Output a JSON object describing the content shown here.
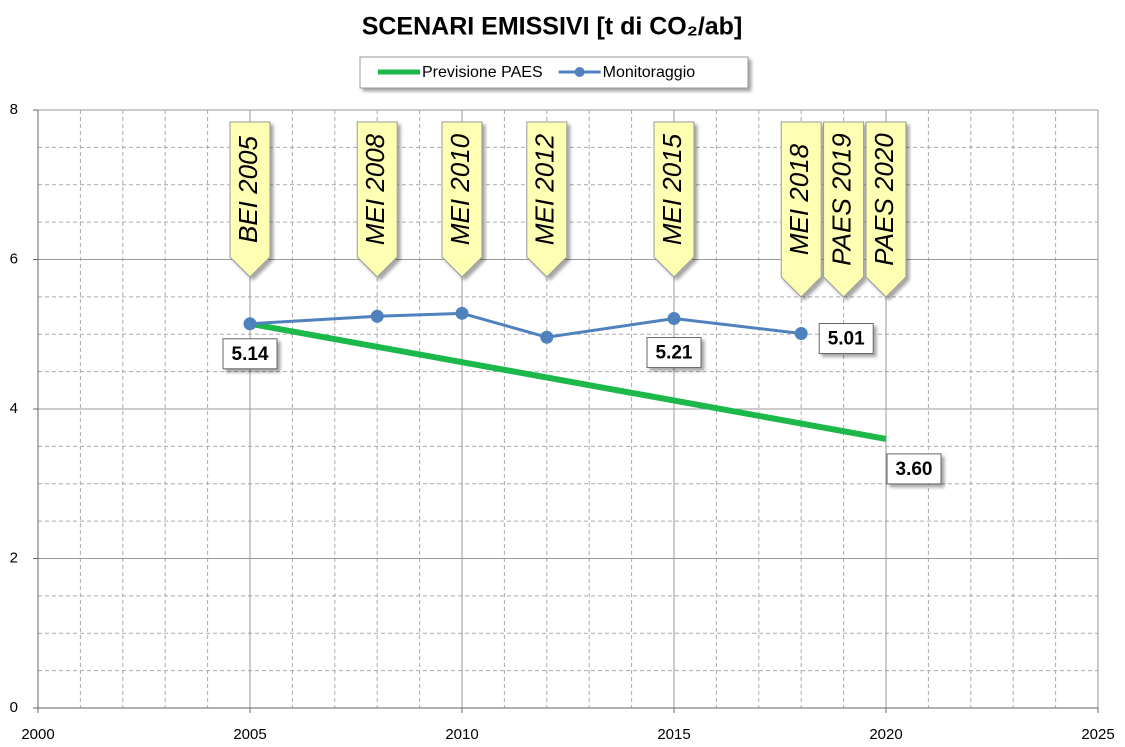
{
  "chart_data": {
    "type": "line",
    "title": "SCENARI EMISSIVI [t di CO₂/ab]",
    "xlim": [
      2000,
      2025
    ],
    "xticks": [
      2000,
      2005,
      2010,
      2015,
      2020,
      2025
    ],
    "ylim": [
      0,
      8
    ],
    "yticks": [
      0,
      2,
      4,
      6,
      8
    ],
    "grid": true,
    "x_minor_step": 1,
    "y_minor_step": 0.5,
    "legend": "top",
    "series": [
      {
        "name": "Previsione PAES",
        "color": "#1db84a",
        "x": [
          2005,
          2020
        ],
        "values": [
          5.14,
          3.6
        ],
        "value_labels": [
          null,
          "3.60"
        ],
        "label_color": "#ff0000",
        "markers": false
      },
      {
        "name": "Monitoraggio",
        "color": "#4f81bd",
        "x": [
          2005,
          2008,
          2010,
          2012,
          2015,
          2018
        ],
        "values": [
          5.14,
          5.24,
          5.28,
          4.96,
          5.21,
          5.01
        ],
        "value_labels": [
          "5.14",
          null,
          null,
          null,
          "5.21",
          "5.01"
        ],
        "label_color": "#000000",
        "markers": true
      }
    ],
    "annotations": [
      {
        "text": "BEI 2005",
        "x": 2005
      },
      {
        "text": "MEI 2008",
        "x": 2008
      },
      {
        "text": "MEI 2010",
        "x": 2010
      },
      {
        "text": "MEI 2012",
        "x": 2012
      },
      {
        "text": "MEI 2015",
        "x": 2015
      },
      {
        "text": "MEI 2018",
        "x": 2018
      },
      {
        "text": "PAES 2019",
        "x": 2019
      },
      {
        "text": "PAES 2020",
        "x": 2020
      }
    ]
  }
}
